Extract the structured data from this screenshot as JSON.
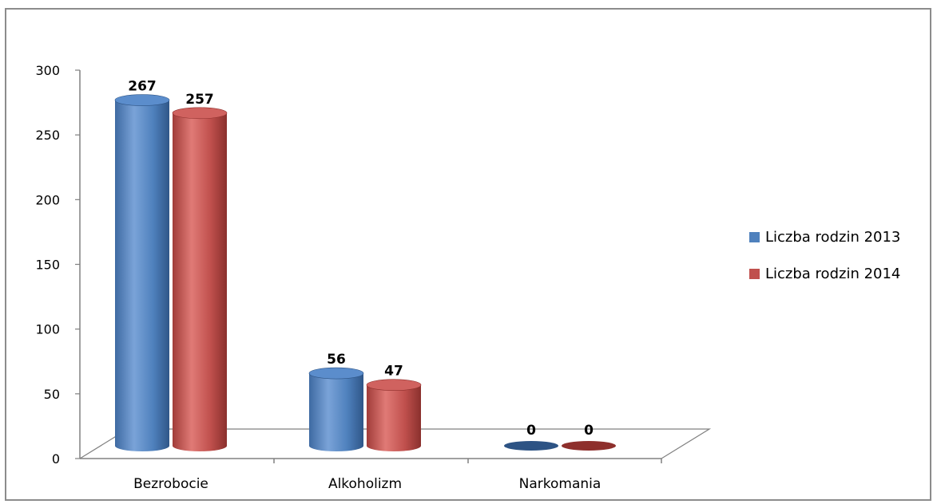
{
  "chart_data": {
    "type": "bar",
    "style": "3d-cylinder",
    "categories": [
      "Bezrobocie",
      "Alkoholizm",
      "Narkomania"
    ],
    "series": [
      {
        "name": "Liczba rodzin 2013",
        "color": "#4f81bd",
        "values": [
          267,
          56,
          0
        ]
      },
      {
        "name": "Liczba rodzin 2014",
        "color": "#c0504d",
        "values": [
          257,
          47,
          0
        ]
      }
    ],
    "ylim": [
      0,
      300
    ],
    "yticks": [
      0,
      50,
      100,
      150,
      200,
      250,
      300
    ],
    "legend_position": "right",
    "grid": false
  }
}
